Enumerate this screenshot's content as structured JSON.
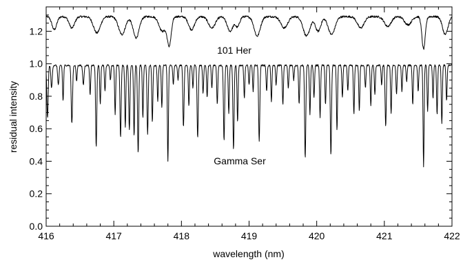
{
  "chart_data": {
    "type": "line",
    "title": "",
    "xlabel": "wavelength (nm)",
    "ylabel": "residual intensity",
    "xlim": [
      416,
      422
    ],
    "ylim": [
      0.0,
      1.35
    ],
    "grid": false,
    "legend": "none",
    "xticks": [
      416,
      417,
      418,
      419,
      420,
      421,
      422
    ],
    "xtick_labels": [
      "416",
      "417",
      "418",
      "419",
      "420",
      "421",
      "422"
    ],
    "yticks": [
      0.0,
      0.2,
      0.4,
      0.6,
      0.8,
      1.0,
      1.2
    ],
    "ytick_labels": [
      "0.0",
      "0.2",
      "0.4",
      "0.6",
      "0.8",
      "1.0",
      "1.2"
    ],
    "series_labels": [
      "101 Her",
      "Gamma Ser"
    ],
    "series": [
      {
        "name": "101 Her",
        "continuum": 1.29,
        "lines": [
          [
            416.12,
            0.08,
            0.035
          ],
          [
            416.38,
            0.07,
            0.04
          ],
          [
            416.75,
            0.1,
            0.05
          ],
          [
            417.12,
            0.11,
            0.05
          ],
          [
            417.33,
            0.13,
            0.045
          ],
          [
            417.72,
            0.09,
            0.05
          ],
          [
            417.82,
            0.17,
            0.03
          ],
          [
            418.15,
            0.08,
            0.045
          ],
          [
            418.45,
            0.07,
            0.05
          ],
          [
            418.72,
            0.09,
            0.045
          ],
          [
            418.83,
            0.06,
            0.03
          ],
          [
            419.12,
            0.12,
            0.045
          ],
          [
            419.52,
            0.07,
            0.05
          ],
          [
            419.85,
            0.12,
            0.05
          ],
          [
            420.02,
            0.09,
            0.04
          ],
          [
            420.22,
            0.11,
            0.05
          ],
          [
            420.65,
            0.07,
            0.05
          ],
          [
            421.05,
            0.06,
            0.05
          ],
          [
            421.35,
            0.05,
            0.05
          ],
          [
            421.58,
            0.2,
            0.025
          ],
          [
            421.9,
            0.11,
            0.04
          ]
        ]
      },
      {
        "name": "Gamma Ser",
        "continuum": 0.99,
        "lines": [
          [
            416.02,
            0.32,
            0.01
          ],
          [
            416.08,
            0.14,
            0.01
          ],
          [
            416.18,
            0.12,
            0.01
          ],
          [
            416.25,
            0.22,
            0.008
          ],
          [
            416.38,
            0.36,
            0.01
          ],
          [
            416.45,
            0.1,
            0.008
          ],
          [
            416.55,
            0.12,
            0.01
          ],
          [
            416.65,
            0.18,
            0.008
          ],
          [
            416.74,
            0.5,
            0.009
          ],
          [
            416.8,
            0.24,
            0.008
          ],
          [
            416.87,
            0.16,
            0.008
          ],
          [
            416.95,
            0.09,
            0.008
          ],
          [
            417.02,
            0.3,
            0.008
          ],
          [
            417.1,
            0.44,
            0.009
          ],
          [
            417.17,
            0.38,
            0.008
          ],
          [
            417.23,
            0.4,
            0.009
          ],
          [
            417.3,
            0.44,
            0.008
          ],
          [
            417.36,
            0.54,
            0.009
          ],
          [
            417.43,
            0.32,
            0.008
          ],
          [
            417.5,
            0.42,
            0.009
          ],
          [
            417.57,
            0.35,
            0.008
          ],
          [
            417.65,
            0.22,
            0.008
          ],
          [
            417.71,
            0.26,
            0.008
          ],
          [
            417.8,
            0.59,
            0.008
          ],
          [
            417.88,
            0.12,
            0.008
          ],
          [
            417.95,
            0.09,
            0.008
          ],
          [
            418.03,
            0.38,
            0.009
          ],
          [
            418.11,
            0.25,
            0.008
          ],
          [
            418.17,
            0.14,
            0.008
          ],
          [
            418.24,
            0.45,
            0.009
          ],
          [
            418.32,
            0.17,
            0.008
          ],
          [
            418.38,
            0.2,
            0.008
          ],
          [
            418.45,
            0.14,
            0.008
          ],
          [
            418.53,
            0.24,
            0.008
          ],
          [
            418.63,
            0.46,
            0.009
          ],
          [
            418.7,
            0.3,
            0.008
          ],
          [
            418.77,
            0.52,
            0.009
          ],
          [
            418.83,
            0.35,
            0.008
          ],
          [
            418.93,
            0.2,
            0.008
          ],
          [
            419.0,
            0.12,
            0.008
          ],
          [
            419.06,
            0.16,
            0.008
          ],
          [
            419.15,
            0.47,
            0.009
          ],
          [
            419.26,
            0.16,
            0.008
          ],
          [
            419.33,
            0.22,
            0.008
          ],
          [
            419.4,
            0.12,
            0.008
          ],
          [
            419.5,
            0.24,
            0.008
          ],
          [
            419.58,
            0.14,
            0.008
          ],
          [
            419.66,
            0.09,
            0.008
          ],
          [
            419.74,
            0.24,
            0.008
          ],
          [
            419.83,
            0.57,
            0.009
          ],
          [
            419.9,
            0.3,
            0.008
          ],
          [
            419.96,
            0.2,
            0.008
          ],
          [
            420.05,
            0.32,
            0.008
          ],
          [
            420.13,
            0.24,
            0.008
          ],
          [
            420.21,
            0.55,
            0.009
          ],
          [
            420.3,
            0.4,
            0.008
          ],
          [
            420.38,
            0.2,
            0.008
          ],
          [
            420.46,
            0.16,
            0.008
          ],
          [
            420.55,
            0.3,
            0.008
          ],
          [
            420.63,
            0.28,
            0.008
          ],
          [
            420.72,
            0.14,
            0.008
          ],
          [
            420.8,
            0.25,
            0.008
          ],
          [
            420.86,
            0.18,
            0.008
          ],
          [
            420.96,
            0.12,
            0.008
          ],
          [
            421.02,
            0.38,
            0.009
          ],
          [
            421.1,
            0.3,
            0.008
          ],
          [
            421.18,
            0.18,
            0.008
          ],
          [
            421.26,
            0.16,
            0.008
          ],
          [
            421.33,
            0.1,
            0.008
          ],
          [
            421.42,
            0.24,
            0.008
          ],
          [
            421.5,
            0.16,
            0.008
          ],
          [
            421.58,
            0.62,
            0.008
          ],
          [
            421.64,
            0.28,
            0.008
          ],
          [
            421.72,
            0.2,
            0.008
          ],
          [
            421.78,
            0.3,
            0.008
          ],
          [
            421.85,
            0.36,
            0.008
          ],
          [
            421.92,
            0.22,
            0.008
          ]
        ]
      }
    ]
  }
}
